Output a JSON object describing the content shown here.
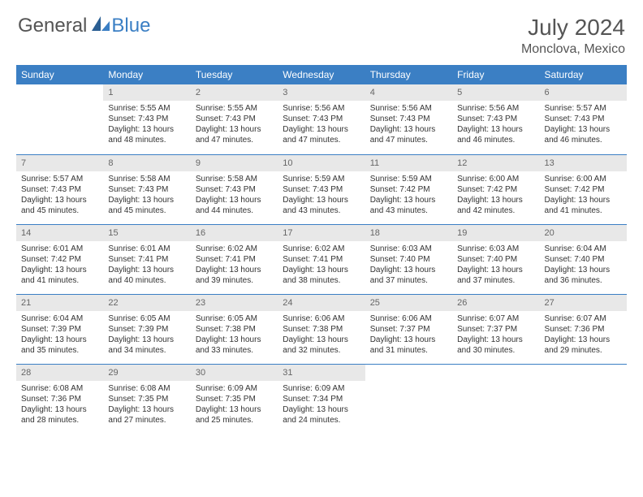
{
  "brand": {
    "part1": "General",
    "part2": "Blue"
  },
  "title": "July 2024",
  "location": "Monclova, Mexico",
  "colors": {
    "header_bg": "#3b7fc4",
    "header_text": "#ffffff",
    "daynum_bg": "#e8e8e8",
    "daynum_text": "#666666",
    "body_text": "#333333",
    "border": "#3b7fc4"
  },
  "dayHeaders": [
    "Sunday",
    "Monday",
    "Tuesday",
    "Wednesday",
    "Thursday",
    "Friday",
    "Saturday"
  ],
  "weeks": [
    [
      null,
      {
        "n": "1",
        "sr": "5:55 AM",
        "ss": "7:43 PM",
        "dl": "13 hours and 48 minutes."
      },
      {
        "n": "2",
        "sr": "5:55 AM",
        "ss": "7:43 PM",
        "dl": "13 hours and 47 minutes."
      },
      {
        "n": "3",
        "sr": "5:56 AM",
        "ss": "7:43 PM",
        "dl": "13 hours and 47 minutes."
      },
      {
        "n": "4",
        "sr": "5:56 AM",
        "ss": "7:43 PM",
        "dl": "13 hours and 47 minutes."
      },
      {
        "n": "5",
        "sr": "5:56 AM",
        "ss": "7:43 PM",
        "dl": "13 hours and 46 minutes."
      },
      {
        "n": "6",
        "sr": "5:57 AM",
        "ss": "7:43 PM",
        "dl": "13 hours and 46 minutes."
      }
    ],
    [
      {
        "n": "7",
        "sr": "5:57 AM",
        "ss": "7:43 PM",
        "dl": "13 hours and 45 minutes."
      },
      {
        "n": "8",
        "sr": "5:58 AM",
        "ss": "7:43 PM",
        "dl": "13 hours and 45 minutes."
      },
      {
        "n": "9",
        "sr": "5:58 AM",
        "ss": "7:43 PM",
        "dl": "13 hours and 44 minutes."
      },
      {
        "n": "10",
        "sr": "5:59 AM",
        "ss": "7:43 PM",
        "dl": "13 hours and 43 minutes."
      },
      {
        "n": "11",
        "sr": "5:59 AM",
        "ss": "7:42 PM",
        "dl": "13 hours and 43 minutes."
      },
      {
        "n": "12",
        "sr": "6:00 AM",
        "ss": "7:42 PM",
        "dl": "13 hours and 42 minutes."
      },
      {
        "n": "13",
        "sr": "6:00 AM",
        "ss": "7:42 PM",
        "dl": "13 hours and 41 minutes."
      }
    ],
    [
      {
        "n": "14",
        "sr": "6:01 AM",
        "ss": "7:42 PM",
        "dl": "13 hours and 41 minutes."
      },
      {
        "n": "15",
        "sr": "6:01 AM",
        "ss": "7:41 PM",
        "dl": "13 hours and 40 minutes."
      },
      {
        "n": "16",
        "sr": "6:02 AM",
        "ss": "7:41 PM",
        "dl": "13 hours and 39 minutes."
      },
      {
        "n": "17",
        "sr": "6:02 AM",
        "ss": "7:41 PM",
        "dl": "13 hours and 38 minutes."
      },
      {
        "n": "18",
        "sr": "6:03 AM",
        "ss": "7:40 PM",
        "dl": "13 hours and 37 minutes."
      },
      {
        "n": "19",
        "sr": "6:03 AM",
        "ss": "7:40 PM",
        "dl": "13 hours and 37 minutes."
      },
      {
        "n": "20",
        "sr": "6:04 AM",
        "ss": "7:40 PM",
        "dl": "13 hours and 36 minutes."
      }
    ],
    [
      {
        "n": "21",
        "sr": "6:04 AM",
        "ss": "7:39 PM",
        "dl": "13 hours and 35 minutes."
      },
      {
        "n": "22",
        "sr": "6:05 AM",
        "ss": "7:39 PM",
        "dl": "13 hours and 34 minutes."
      },
      {
        "n": "23",
        "sr": "6:05 AM",
        "ss": "7:38 PM",
        "dl": "13 hours and 33 minutes."
      },
      {
        "n": "24",
        "sr": "6:06 AM",
        "ss": "7:38 PM",
        "dl": "13 hours and 32 minutes."
      },
      {
        "n": "25",
        "sr": "6:06 AM",
        "ss": "7:37 PM",
        "dl": "13 hours and 31 minutes."
      },
      {
        "n": "26",
        "sr": "6:07 AM",
        "ss": "7:37 PM",
        "dl": "13 hours and 30 minutes."
      },
      {
        "n": "27",
        "sr": "6:07 AM",
        "ss": "7:36 PM",
        "dl": "13 hours and 29 minutes."
      }
    ],
    [
      {
        "n": "28",
        "sr": "6:08 AM",
        "ss": "7:36 PM",
        "dl": "13 hours and 28 minutes."
      },
      {
        "n": "29",
        "sr": "6:08 AM",
        "ss": "7:35 PM",
        "dl": "13 hours and 27 minutes."
      },
      {
        "n": "30",
        "sr": "6:09 AM",
        "ss": "7:35 PM",
        "dl": "13 hours and 25 minutes."
      },
      {
        "n": "31",
        "sr": "6:09 AM",
        "ss": "7:34 PM",
        "dl": "13 hours and 24 minutes."
      },
      null,
      null,
      null
    ]
  ],
  "labels": {
    "sunrise": "Sunrise:",
    "sunset": "Sunset:",
    "daylight": "Daylight:"
  }
}
